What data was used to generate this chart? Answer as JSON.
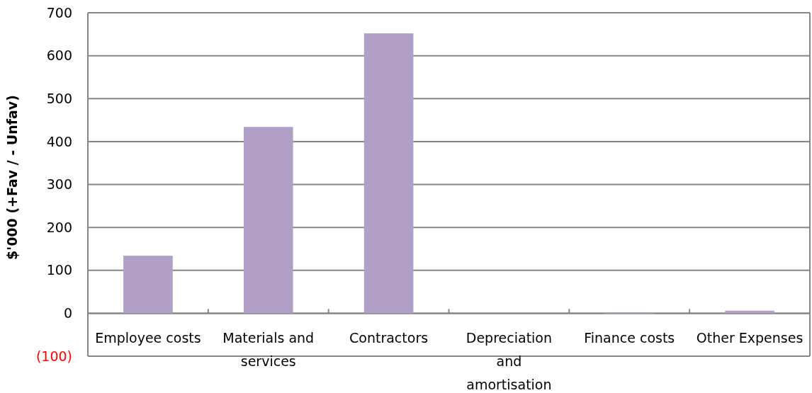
{
  "chart_data": {
    "type": "bar",
    "ylabel": "$'000 (+Fav / - Unfav)",
    "categories": [
      "Employee costs",
      "Materials and services",
      "Contractors",
      "Depreciation and amortisation",
      "Finance costs",
      "Other Expenses"
    ],
    "values": [
      134,
      434,
      652,
      0,
      -2,
      6
    ],
    "color": "#b0a0c8",
    "ylim": [
      -100,
      700
    ],
    "yticks": [
      {
        "value": -100,
        "label": "(100)"
      },
      0,
      100,
      200,
      300,
      400,
      500,
      600,
      700
    ],
    "grid": "y"
  }
}
